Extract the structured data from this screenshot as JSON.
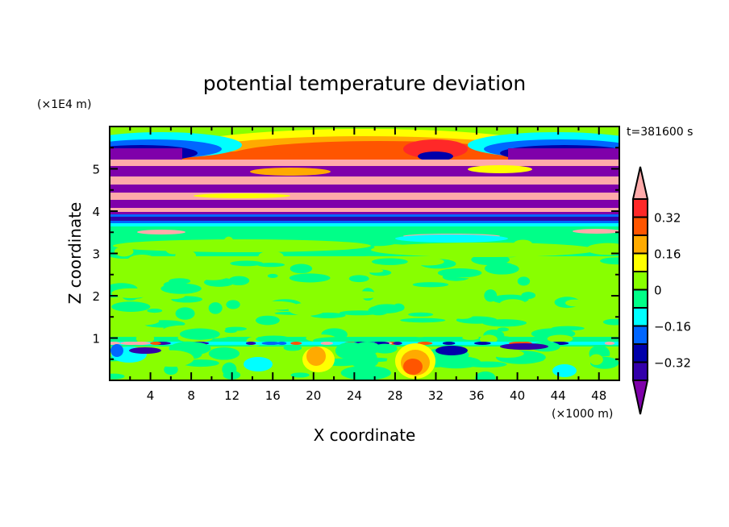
{
  "chart_data": {
    "type": "heatmap",
    "title": "potential temperature deviation",
    "xlabel": "X coordinate",
    "ylabel": "Z coordinate",
    "x_unit": "(×1000 m)",
    "y_unit": "(×1E4 m)",
    "time_label": "t=381600 s",
    "xlim": [
      0,
      50
    ],
    "ylim": [
      0,
      6
    ],
    "x_ticks": [
      4,
      8,
      12,
      16,
      20,
      24,
      28,
      32,
      36,
      40,
      44,
      48
    ],
    "x_minor_step": 2,
    "y_ticks": [
      1,
      2,
      3,
      4,
      5
    ],
    "y_minor_step": 0.5,
    "colorbar": {
      "levels": [
        -0.4,
        -0.32,
        -0.24,
        -0.16,
        -0.08,
        0,
        0.08,
        0.16,
        0.24,
        0.32,
        0.4
      ],
      "tick_labels": [
        {
          "value": 0.32,
          "label": "0.32"
        },
        {
          "value": 0.16,
          "label": "0.16"
        },
        {
          "value": 0,
          "label": "0"
        },
        {
          "value": -0.16,
          "label": "−0.16"
        },
        {
          "value": -0.32,
          "label": "−0.32"
        }
      ],
      "colors": [
        "#3300aa",
        "#0000aa",
        "#0066ff",
        "#00ffff",
        "#00ff88",
        "#88ff00",
        "#ffff00",
        "#ffaa00",
        "#ff5500",
        "#ff2828"
      ],
      "under_color": "#7f00aa",
      "over_color": "#ffaaaa"
    }
  }
}
